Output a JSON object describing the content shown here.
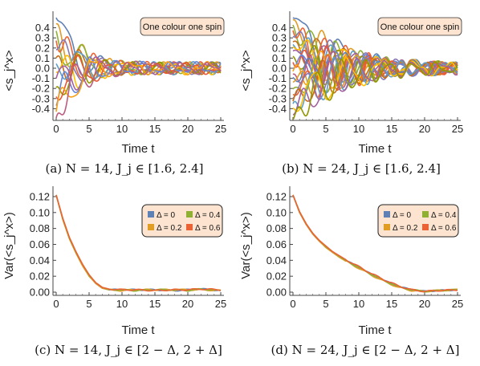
{
  "chart_data": [
    {
      "type": "line",
      "panel": "a",
      "xlabel": "Time t",
      "ylabel": "<s_j^x>",
      "xlim": [
        0,
        25
      ],
      "ylim": [
        -0.5,
        0.5
      ],
      "xticks": [
        "0",
        "5",
        "10",
        "15",
        "20",
        "25"
      ],
      "yticks": [
        "-0.4",
        "-0.3",
        "-0.2",
        "-0.1",
        "0.0",
        "0.1",
        "0.2",
        "0.3",
        "0.4"
      ],
      "annotation": "One colour one spin",
      "caption": "(a) N = 14, J_j ∈ [1.6, 2.4]",
      "series_count": 14,
      "initial_values": [
        0.5,
        0.42,
        0.35,
        0.27,
        0.2,
        0.12,
        0.05,
        -0.05,
        -0.12,
        -0.2,
        -0.27,
        -0.35,
        -0.42,
        -0.5
      ],
      "envelope": {
        "t": [
          0,
          2,
          4,
          6,
          8,
          10,
          15,
          20,
          25
        ],
        "amplitude": [
          0.5,
          0.32,
          0.2,
          0.12,
          0.08,
          0.06,
          0.05,
          0.05,
          0.05
        ]
      }
    },
    {
      "type": "line",
      "panel": "b",
      "xlabel": "Time t",
      "ylabel": "<s_j^x>",
      "xlim": [
        0,
        25
      ],
      "ylim": [
        -0.5,
        0.5
      ],
      "xticks": [
        "0",
        "5",
        "10",
        "15",
        "20",
        "25"
      ],
      "yticks": [
        "-0.4",
        "-0.3",
        "-0.2",
        "-0.1",
        "0.0",
        "0.1",
        "0.2",
        "0.3",
        "0.4"
      ],
      "annotation": "One colour one spin",
      "caption": "(b) N = 24, J_j ∈ [1.6, 2.4]",
      "series_count": 24,
      "initial_values": [
        0.5,
        0.46,
        0.41,
        0.37,
        0.33,
        0.28,
        0.24,
        0.2,
        0.15,
        0.11,
        0.07,
        0.02,
        -0.02,
        -0.07,
        -0.11,
        -0.15,
        -0.2,
        -0.24,
        -0.28,
        -0.33,
        -0.37,
        -0.41,
        -0.46,
        -0.5
      ],
      "envelope": {
        "t": [
          0,
          3,
          6,
          9,
          12,
          15,
          20,
          25
        ],
        "amplitude": [
          0.5,
          0.38,
          0.27,
          0.18,
          0.12,
          0.08,
          0.06,
          0.05
        ]
      }
    },
    {
      "type": "line",
      "panel": "c",
      "xlabel": "Time t",
      "ylabel": "Var(<s_j^x>)",
      "xlim": [
        0,
        25
      ],
      "ylim": [
        0,
        0.125
      ],
      "xticks": [
        "0",
        "5",
        "10",
        "15",
        "20",
        "25"
      ],
      "yticks": [
        "0.00",
        "0.02",
        "0.04",
        "0.06",
        "0.08",
        "0.10",
        "0.12"
      ],
      "caption": "(c) N = 14, J_j ∈ [2 − Δ, 2 + Δ]",
      "x": [
        0,
        1,
        2,
        3,
        4,
        5,
        6,
        7,
        8,
        10,
        12,
        15,
        18,
        20,
        22,
        25
      ],
      "series": [
        {
          "name": "Δ = 0",
          "color": "#5e81b5",
          "values": [
            0.122,
            0.092,
            0.068,
            0.05,
            0.034,
            0.021,
            0.011,
            0.005,
            0.003,
            0.003,
            0.003,
            0.003,
            0.002,
            0.003,
            0.004,
            0.002
          ]
        },
        {
          "name": "Δ = 0.2",
          "color": "#e19c24",
          "values": [
            0.122,
            0.091,
            0.067,
            0.049,
            0.033,
            0.02,
            0.011,
            0.005,
            0.003,
            0.002,
            0.003,
            0.003,
            0.003,
            0.003,
            0.003,
            0.002
          ]
        },
        {
          "name": "Δ = 0.4",
          "color": "#8fb032",
          "values": [
            0.122,
            0.092,
            0.068,
            0.05,
            0.035,
            0.021,
            0.012,
            0.006,
            0.003,
            0.003,
            0.002,
            0.003,
            0.003,
            0.002,
            0.004,
            0.002
          ]
        },
        {
          "name": "Δ = 0.6",
          "color": "#eb6235",
          "values": [
            0.122,
            0.093,
            0.069,
            0.051,
            0.035,
            0.022,
            0.012,
            0.006,
            0.004,
            0.003,
            0.003,
            0.002,
            0.003,
            0.003,
            0.004,
            0.003
          ]
        }
      ]
    },
    {
      "type": "line",
      "panel": "d",
      "xlabel": "Time t",
      "ylabel": "Var(<s_j^x>)",
      "xlim": [
        0,
        25
      ],
      "ylim": [
        0,
        0.125
      ],
      "xticks": [
        "0",
        "5",
        "10",
        "15",
        "20",
        "25"
      ],
      "yticks": [
        "0.00",
        "0.02",
        "0.04",
        "0.06",
        "0.08",
        "0.10",
        "0.12"
      ],
      "caption": "(d) N = 24, J_j ∈ [2 − Δ, 2 + Δ]",
      "x": [
        0,
        1,
        2,
        3,
        4,
        5,
        6,
        7,
        8,
        10,
        12,
        14,
        16,
        18,
        20,
        22,
        25
      ],
      "series": [
        {
          "name": "Δ = 0",
          "color": "#5e81b5",
          "values": [
            0.122,
            0.1,
            0.085,
            0.073,
            0.064,
            0.057,
            0.05,
            0.045,
            0.04,
            0.031,
            0.022,
            0.014,
            0.007,
            0.003,
            0.001,
            0.002,
            0.003
          ]
        },
        {
          "name": "Δ = 0.2",
          "color": "#e19c24",
          "values": [
            0.122,
            0.1,
            0.085,
            0.073,
            0.064,
            0.056,
            0.05,
            0.044,
            0.039,
            0.03,
            0.021,
            0.013,
            0.006,
            0.002,
            0.001,
            0.002,
            0.003
          ]
        },
        {
          "name": "Δ = 0.4",
          "color": "#8fb032",
          "values": [
            0.122,
            0.101,
            0.086,
            0.074,
            0.065,
            0.057,
            0.051,
            0.045,
            0.04,
            0.031,
            0.022,
            0.014,
            0.007,
            0.003,
            0.001,
            0.002,
            0.003
          ]
        },
        {
          "name": "Δ = 0.6",
          "color": "#eb6235",
          "values": [
            0.122,
            0.101,
            0.086,
            0.074,
            0.065,
            0.058,
            0.051,
            0.046,
            0.041,
            0.032,
            0.023,
            0.015,
            0.008,
            0.003,
            0.001,
            0.002,
            0.003
          ]
        }
      ]
    }
  ],
  "palette": [
    "#5e81b5",
    "#e19c24",
    "#8fb032",
    "#eb6235",
    "#8778b3",
    "#c56e1a",
    "#5d9ec7",
    "#ffbf00",
    "#a5609d",
    "#929600",
    "#e95536",
    "#6685d9",
    "#f89f13",
    "#bc5b80"
  ],
  "annotation_box_color": "#fde4d0"
}
